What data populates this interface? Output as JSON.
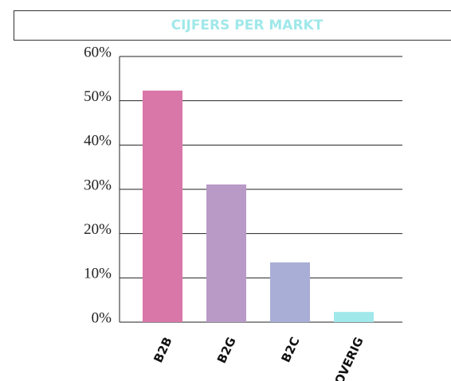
{
  "chart_data": {
    "type": "bar",
    "title": "CIJFERS PER MARKT",
    "categories": [
      "B2B",
      "B2G",
      "B2C",
      "OVERIG"
    ],
    "values": [
      52.3,
      31.1,
      13.5,
      2.3
    ],
    "colors": [
      "#d977a8",
      "#b99ac6",
      "#a8aed6",
      "#a0e8ea"
    ],
    "ylim": [
      0,
      60
    ],
    "yticks": [
      {
        "value": 0,
        "label": "0%"
      },
      {
        "value": 10,
        "label": "10%"
      },
      {
        "value": 20,
        "label": "20%"
      },
      {
        "value": 30,
        "label": "30%"
      },
      {
        "value": 40,
        "label": "40%"
      },
      {
        "value": 50,
        "label": "50%"
      },
      {
        "value": 60,
        "label": "60%"
      }
    ],
    "grid": true
  }
}
